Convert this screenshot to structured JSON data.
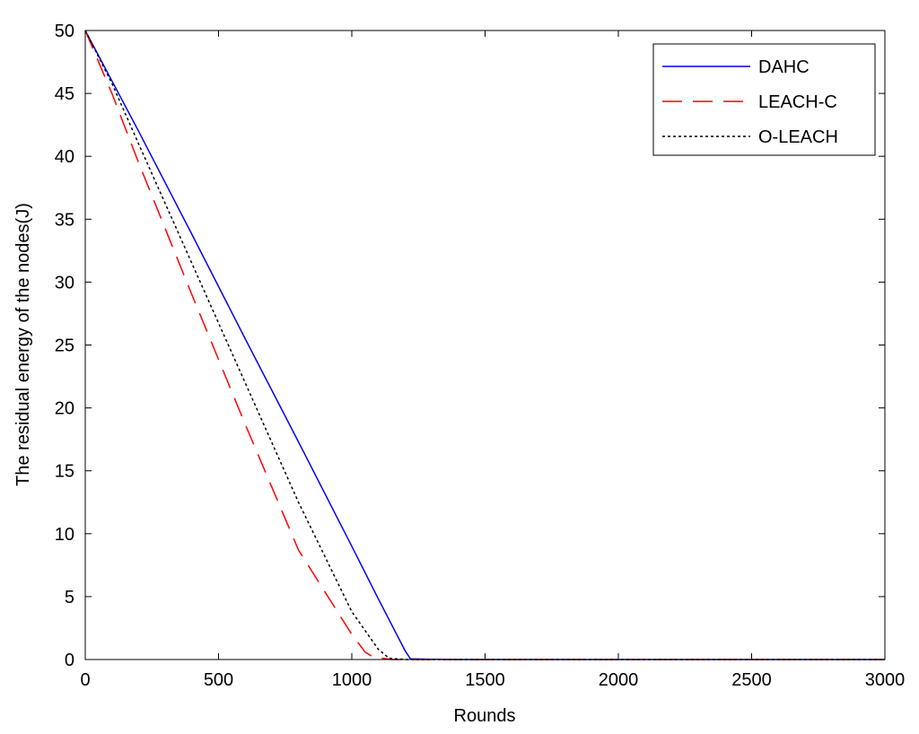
{
  "chart_data": {
    "type": "line",
    "title": "",
    "xlabel": "Rounds",
    "ylabel": "The residual energy of the nodes(J)",
    "xlim": [
      0,
      3000
    ],
    "ylim": [
      0,
      50
    ],
    "xticks": [
      0,
      500,
      1000,
      1500,
      2000,
      2500,
      3000
    ],
    "yticks": [
      0,
      5,
      10,
      15,
      20,
      25,
      30,
      35,
      40,
      45,
      50
    ],
    "grid": false,
    "legend_position": "top-right",
    "series": [
      {
        "name": "DAHC",
        "color": "#0000ff",
        "style": "solid",
        "x": [
          0,
          200,
          400,
          600,
          800,
          1000,
          1100,
          1200,
          1220,
          1300,
          1385,
          3000
        ],
        "y": [
          50,
          42,
          33.8,
          25.5,
          17.3,
          9,
          4.8,
          0.7,
          0.05,
          0.02,
          0,
          0
        ]
      },
      {
        "name": "LEACH-C",
        "color": "#ff0000",
        "style": "dashed",
        "x": [
          0,
          100,
          200,
          400,
          600,
          800,
          1000,
          1050,
          1080,
          1150,
          3000
        ],
        "y": [
          50,
          45,
          39.5,
          29,
          18.7,
          8.7,
          2,
          0.6,
          0.2,
          0,
          0
        ]
      },
      {
        "name": "O-LEACH",
        "color": "#000000",
        "style": "dotted",
        "x": [
          0,
          100,
          200,
          400,
          600,
          800,
          1000,
          1100,
          1140,
          1200,
          3000
        ],
        "y": [
          50,
          45.8,
          41,
          31.5,
          22,
          12.5,
          3.8,
          0.8,
          0.1,
          0,
          0
        ]
      }
    ]
  }
}
